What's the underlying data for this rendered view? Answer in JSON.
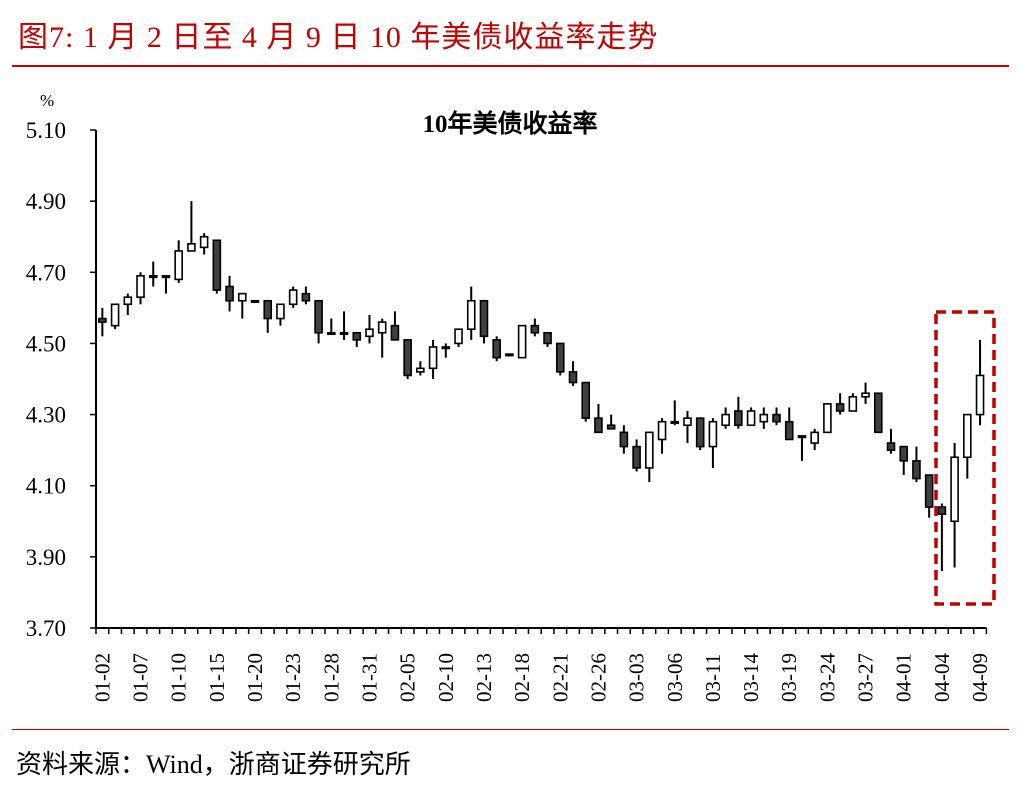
{
  "figure": {
    "title": "图7:  1 月 2 日至 4 月 9 日 10 年美债收益率走势",
    "source": "资料来源：Wind，浙商证券研究所",
    "accent_color": "#c00000"
  },
  "chart_data": {
    "type": "candlestick",
    "title": "10年美债收益率",
    "xlabel": "",
    "ylabel": "%",
    "ylim": [
      3.7,
      5.1
    ],
    "yticks": [
      "5.10",
      "4.90",
      "4.70",
      "4.50",
      "4.30",
      "4.10",
      "3.90",
      "3.70"
    ],
    "grid": false,
    "legend": null,
    "x_tick_labels": [
      "01-02",
      "01-07",
      "01-10",
      "01-15",
      "01-20",
      "01-23",
      "01-28",
      "01-31",
      "02-05",
      "02-10",
      "02-13",
      "02-18",
      "02-21",
      "02-26",
      "03-03",
      "03-06",
      "03-11",
      "03-14",
      "03-19",
      "03-24",
      "03-27",
      "04-01",
      "04-04",
      "04-09"
    ],
    "x_tick_label_every": 3,
    "up_color": "#ffffff",
    "down_color": "#404040",
    "highlight_box": {
      "from_index": 65,
      "to_index": 69,
      "color": "#c00000",
      "style": "dashed"
    },
    "candles": [
      {
        "o": 4.57,
        "h": 4.6,
        "l": 4.52,
        "c": 4.56
      },
      {
        "o": 4.55,
        "h": 4.61,
        "l": 4.54,
        "c": 4.61
      },
      {
        "o": 4.61,
        "h": 4.64,
        "l": 4.58,
        "c": 4.63
      },
      {
        "o": 4.63,
        "h": 4.7,
        "l": 4.61,
        "c": 4.69
      },
      {
        "o": 4.69,
        "h": 4.73,
        "l": 4.66,
        "c": 4.69
      },
      {
        "o": 4.69,
        "h": 4.69,
        "l": 4.64,
        "c": 4.69
      },
      {
        "o": 4.68,
        "h": 4.79,
        "l": 4.67,
        "c": 4.76
      },
      {
        "o": 4.76,
        "h": 4.9,
        "l": 4.76,
        "c": 4.78
      },
      {
        "o": 4.77,
        "h": 4.81,
        "l": 4.75,
        "c": 4.8
      },
      {
        "o": 4.79,
        "h": 4.79,
        "l": 4.64,
        "c": 4.65
      },
      {
        "o": 4.66,
        "h": 4.69,
        "l": 4.59,
        "c": 4.62
      },
      {
        "o": 4.62,
        "h": 4.64,
        "l": 4.57,
        "c": 4.64
      },
      {
        "o": 4.62,
        "h": 4.62,
        "l": 4.62,
        "c": 4.62
      },
      {
        "o": 4.62,
        "h": 4.62,
        "l": 4.53,
        "c": 4.57
      },
      {
        "o": 4.57,
        "h": 4.61,
        "l": 4.55,
        "c": 4.61
      },
      {
        "o": 4.61,
        "h": 4.66,
        "l": 4.6,
        "c": 4.65
      },
      {
        "o": 4.64,
        "h": 4.66,
        "l": 4.61,
        "c": 4.62
      },
      {
        "o": 4.62,
        "h": 4.62,
        "l": 4.5,
        "c": 4.53
      },
      {
        "o": 4.53,
        "h": 4.57,
        "l": 4.53,
        "c": 4.53
      },
      {
        "o": 4.53,
        "h": 4.59,
        "l": 4.51,
        "c": 4.53
      },
      {
        "o": 4.53,
        "h": 4.53,
        "l": 4.49,
        "c": 4.51
      },
      {
        "o": 4.52,
        "h": 4.58,
        "l": 4.5,
        "c": 4.54
      },
      {
        "o": 4.53,
        "h": 4.57,
        "l": 4.46,
        "c": 4.56
      },
      {
        "o": 4.55,
        "h": 4.59,
        "l": 4.51,
        "c": 4.51
      },
      {
        "o": 4.51,
        "h": 4.51,
        "l": 4.4,
        "c": 4.41
      },
      {
        "o": 4.42,
        "h": 4.45,
        "l": 4.41,
        "c": 4.43
      },
      {
        "o": 4.43,
        "h": 4.51,
        "l": 4.4,
        "c": 4.49
      },
      {
        "o": 4.49,
        "h": 4.5,
        "l": 4.46,
        "c": 4.49
      },
      {
        "o": 4.5,
        "h": 4.54,
        "l": 4.49,
        "c": 4.54
      },
      {
        "o": 4.54,
        "h": 4.66,
        "l": 4.51,
        "c": 4.62
      },
      {
        "o": 4.62,
        "h": 4.62,
        "l": 4.5,
        "c": 4.52
      },
      {
        "o": 4.51,
        "h": 4.52,
        "l": 4.45,
        "c": 4.46
      },
      {
        "o": 4.47,
        "h": 4.47,
        "l": 4.47,
        "c": 4.47
      },
      {
        "o": 4.46,
        "h": 4.55,
        "l": 4.46,
        "c": 4.55
      },
      {
        "o": 4.55,
        "h": 4.57,
        "l": 4.52,
        "c": 4.53
      },
      {
        "o": 4.53,
        "h": 4.53,
        "l": 4.49,
        "c": 4.5
      },
      {
        "o": 4.5,
        "h": 4.5,
        "l": 4.41,
        "c": 4.42
      },
      {
        "o": 4.42,
        "h": 4.45,
        "l": 4.38,
        "c": 4.39
      },
      {
        "o": 4.39,
        "h": 4.39,
        "l": 4.28,
        "c": 4.29
      },
      {
        "o": 4.29,
        "h": 4.33,
        "l": 4.25,
        "c": 4.25
      },
      {
        "o": 4.27,
        "h": 4.3,
        "l": 4.26,
        "c": 4.26
      },
      {
        "o": 4.25,
        "h": 4.27,
        "l": 4.19,
        "c": 4.21
      },
      {
        "o": 4.21,
        "h": 4.23,
        "l": 4.14,
        "c": 4.15
      },
      {
        "o": 4.15,
        "h": 4.25,
        "l": 4.11,
        "c": 4.25
      },
      {
        "o": 4.23,
        "h": 4.29,
        "l": 4.19,
        "c": 4.28
      },
      {
        "o": 4.28,
        "h": 4.34,
        "l": 4.27,
        "c": 4.28
      },
      {
        "o": 4.27,
        "h": 4.31,
        "l": 4.22,
        "c": 4.29
      },
      {
        "o": 4.29,
        "h": 4.29,
        "l": 4.2,
        "c": 4.21
      },
      {
        "o": 4.21,
        "h": 4.29,
        "l": 4.15,
        "c": 4.28
      },
      {
        "o": 4.27,
        "h": 4.32,
        "l": 4.26,
        "c": 4.3
      },
      {
        "o": 4.31,
        "h": 4.35,
        "l": 4.26,
        "c": 4.27
      },
      {
        "o": 4.27,
        "h": 4.32,
        "l": 4.27,
        "c": 4.31
      },
      {
        "o": 4.28,
        "h": 4.32,
        "l": 4.26,
        "c": 4.3
      },
      {
        "o": 4.3,
        "h": 4.32,
        "l": 4.27,
        "c": 4.28
      },
      {
        "o": 4.28,
        "h": 4.32,
        "l": 4.23,
        "c": 4.23
      },
      {
        "o": 4.24,
        "h": 4.24,
        "l": 4.17,
        "c": 4.24
      },
      {
        "o": 4.22,
        "h": 4.26,
        "l": 4.2,
        "c": 4.25
      },
      {
        "o": 4.25,
        "h": 4.33,
        "l": 4.25,
        "c": 4.33
      },
      {
        "o": 4.33,
        "h": 4.36,
        "l": 4.3,
        "c": 4.31
      },
      {
        "o": 4.31,
        "h": 4.36,
        "l": 4.31,
        "c": 4.35
      },
      {
        "o": 4.35,
        "h": 4.39,
        "l": 4.33,
        "c": 4.36
      },
      {
        "o": 4.36,
        "h": 4.36,
        "l": 4.25,
        "c": 4.25
      },
      {
        "o": 4.22,
        "h": 4.26,
        "l": 4.19,
        "c": 4.2
      },
      {
        "o": 4.21,
        "h": 4.21,
        "l": 4.13,
        "c": 4.17
      },
      {
        "o": 4.17,
        "h": 4.21,
        "l": 4.11,
        "c": 4.12
      },
      {
        "o": 4.13,
        "h": 4.13,
        "l": 4.01,
        "c": 4.04
      },
      {
        "o": 4.04,
        "h": 4.05,
        "l": 3.86,
        "c": 4.02
      },
      {
        "o": 4.0,
        "h": 4.22,
        "l": 3.87,
        "c": 4.18
      },
      {
        "o": 4.18,
        "h": 4.3,
        "l": 4.12,
        "c": 4.3
      },
      {
        "o": 4.3,
        "h": 4.51,
        "l": 4.27,
        "c": 4.41
      }
    ]
  }
}
